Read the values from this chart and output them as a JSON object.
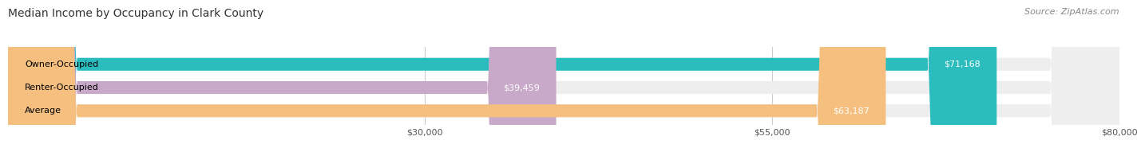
{
  "title": "Median Income by Occupancy in Clark County",
  "source": "Source: ZipAtlas.com",
  "categories": [
    "Owner-Occupied",
    "Renter-Occupied",
    "Average"
  ],
  "values": [
    71168,
    39459,
    63187
  ],
  "labels": [
    "$71,168",
    "$39,459",
    "$63,187"
  ],
  "bar_colors": [
    "#2bbcbe",
    "#c9a9c9",
    "#f5bf80"
  ],
  "xmin": 0,
  "xmax": 80000,
  "xticks": [
    30000,
    55000,
    80000
  ],
  "xtick_labels": [
    "$30,000",
    "$55,000",
    "$80,000"
  ],
  "title_fontsize": 10,
  "source_fontsize": 8,
  "label_fontsize": 8,
  "category_fontsize": 8,
  "background_color": "#ffffff",
  "bar_bg_color": "#eeeeee"
}
